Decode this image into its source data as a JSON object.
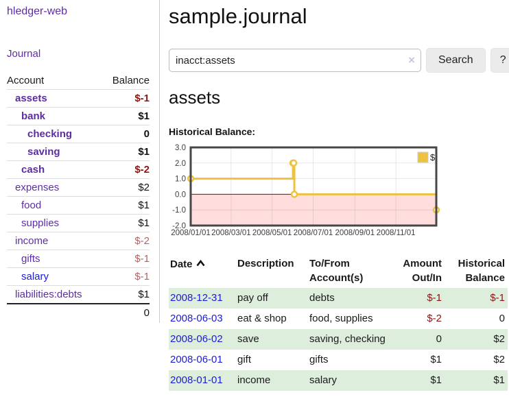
{
  "app_title": "hledger-web",
  "sidebar": {
    "journal_link": "Journal",
    "accounts": {
      "header_account": "Account",
      "header_balance": "Balance",
      "rows": [
        {
          "name": "assets",
          "balance": "$-1",
          "indent": 1,
          "bold": true
        },
        {
          "name": "bank",
          "balance": "$1",
          "indent": 2,
          "bold": true
        },
        {
          "name": "checking",
          "balance": "0",
          "indent": 3,
          "bold": true
        },
        {
          "name": "saving",
          "balance": "$1",
          "indent": 3,
          "bold": true
        },
        {
          "name": "cash",
          "balance": "$-2",
          "indent": 2,
          "bold": true
        },
        {
          "name": "expenses",
          "balance": "$2",
          "indent": 1,
          "bold": false
        },
        {
          "name": "food",
          "balance": "$1",
          "indent": 2,
          "bold": false
        },
        {
          "name": "supplies",
          "balance": "$1",
          "indent": 2,
          "bold": false
        },
        {
          "name": "income",
          "balance": "$-2",
          "indent": 1,
          "bold": false
        },
        {
          "name": "gifts",
          "balance": "$-1",
          "indent": 2,
          "bold": false
        },
        {
          "name": "salary",
          "balance": "$-1",
          "indent": 2,
          "bold": false,
          "link_style": "unvisited"
        },
        {
          "name": "liabilities:debts",
          "balance": "$1",
          "indent": 1,
          "bold": false
        }
      ],
      "total": "0"
    }
  },
  "main": {
    "title": "sample.journal",
    "search": {
      "value": "inacct:assets",
      "clear_icon": "×",
      "search_button": "Search",
      "help_button": "?"
    },
    "account_heading": "assets",
    "section_label": "Historical Balance:",
    "register": {
      "columns": [
        "Date",
        "Description",
        "To/From Account(s)",
        "Amount Out/In",
        "Historical Balance"
      ],
      "sort": {
        "column": "Date",
        "direction": "ascending"
      },
      "rows": [
        {
          "date": "2008-12-31",
          "description": "pay off",
          "accounts": "debts",
          "amount": "$-1",
          "balance": "$-1"
        },
        {
          "date": "2008-06-03",
          "description": "eat & shop",
          "accounts": "food, supplies",
          "amount": "$-2",
          "balance": "0"
        },
        {
          "date": "2008-06-02",
          "description": "save",
          "accounts": "saving, checking",
          "amount": "0",
          "balance": "$2"
        },
        {
          "date": "2008-06-01",
          "description": "gift",
          "accounts": "gifts",
          "amount": "$1",
          "balance": "$2"
        },
        {
          "date": "2008-01-01",
          "description": "income",
          "accounts": "salary",
          "amount": "$1",
          "balance": "$1"
        }
      ]
    }
  },
  "colors": {
    "purple": "#5e2ca5",
    "blue": "#1b1bd8",
    "negdark": "#8b1414",
    "neglight": "#b36363",
    "stripe": "#deeedd",
    "chart_line": "#EDC240"
  },
  "chart_data": {
    "type": "line",
    "step": true,
    "title": "Historical Balance",
    "x": [
      "2008-01-01",
      "2008-06-01",
      "2008-06-02",
      "2008-06-03",
      "2008-12-31"
    ],
    "series": [
      {
        "name": "$",
        "values": [
          1,
          2,
          2,
          0,
          -1
        ],
        "color": "#EDC240"
      }
    ],
    "x_ticks": [
      "2008/01/01",
      "2008/03/01",
      "2008/05/01",
      "2008/07/01",
      "2008/09/01",
      "2008/11/01"
    ],
    "y_ticks": [
      "3.0",
      "2.0",
      "1.0",
      "0.0",
      "-1.0",
      "-2.0"
    ],
    "xlim": [
      "2008-01-01",
      "2008-12-31"
    ],
    "ylim": [
      -2,
      3
    ],
    "grid": true,
    "legend_position": "top-right",
    "legend": [
      "$"
    ],
    "negative_fill": "#ffdddd",
    "zero_line_color": "#8b0000",
    "border_color": "#474747"
  }
}
